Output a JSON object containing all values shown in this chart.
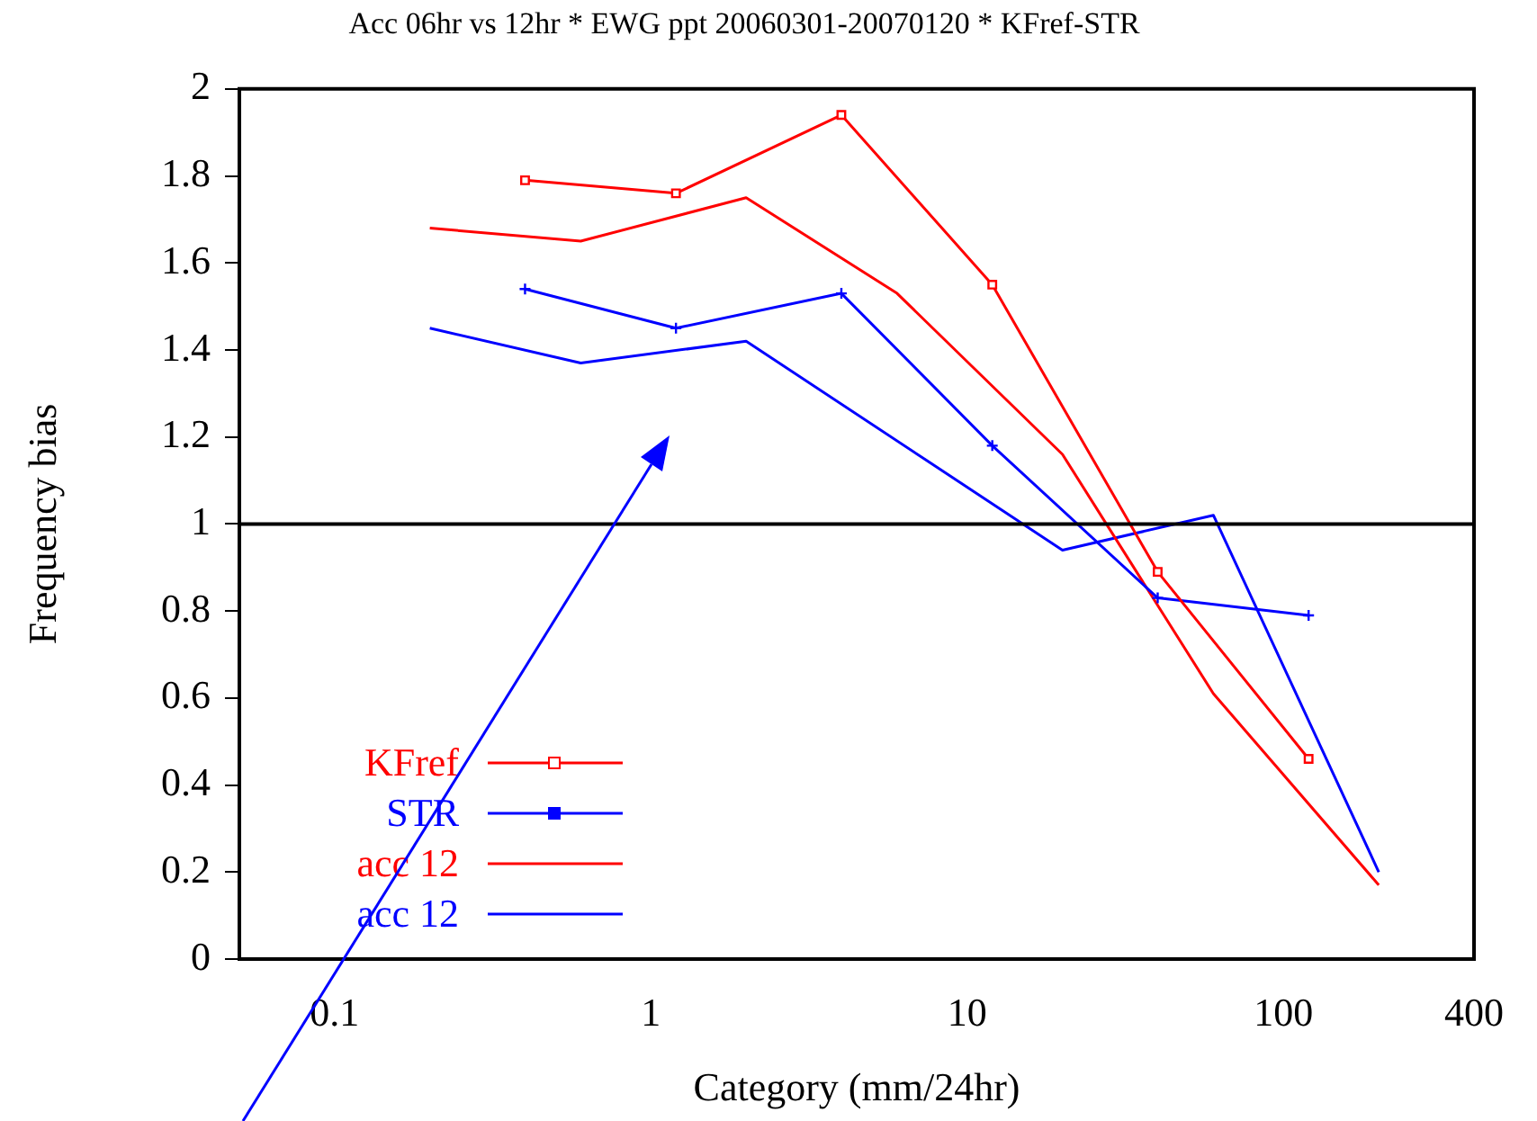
{
  "chart_data": {
    "type": "line",
    "title": "Acc 06hr vs 12hr * EWG ppt 20060301-20070120 * KFref-STR",
    "xlabel": "Category (mm/24hr)",
    "ylabel": "Frequency bias",
    "log": "x",
    "xlim": [
      0.05,
      400
    ],
    "xticks": [
      0.1,
      1,
      10,
      100,
      400
    ],
    "ylim": [
      0,
      2
    ],
    "yticks": [
      0,
      0.2,
      0.4,
      0.6,
      0.8,
      1,
      1.2,
      1.4,
      1.6,
      1.8,
      2
    ],
    "grid": false,
    "legend": "bottom left",
    "line_style": "solid",
    "ref_lines": [
      {
        "axis": "y",
        "value": 1,
        "color": "#000000"
      }
    ],
    "series": [
      {
        "name": "KFref",
        "color": "#ff0000",
        "marker": "square",
        "x": [
          0.4,
          1.2,
          4,
          12,
          40,
          120
        ],
        "values": [
          1.79,
          1.76,
          1.94,
          1.55,
          0.89,
          0.46
        ]
      },
      {
        "name": "STR",
        "color": "#0000ff",
        "marker": "cross",
        "x": [
          0.4,
          1.2,
          4,
          12,
          40,
          120
        ],
        "values": [
          1.54,
          1.45,
          1.53,
          1.18,
          0.83,
          0.79
        ]
      },
      {
        "name": "acc 12",
        "color": "#ff0000",
        "marker": "none",
        "x": [
          0.2,
          0.6,
          2,
          6,
          20,
          60,
          200
        ],
        "values": [
          1.68,
          1.65,
          1.75,
          1.53,
          1.16,
          0.61,
          0.17
        ]
      },
      {
        "name": "acc 12",
        "color": "#0000ff",
        "marker": "none",
        "x": [
          0.2,
          0.6,
          2,
          20,
          60,
          200
        ],
        "values": [
          1.45,
          1.37,
          1.42,
          0.94,
          1.02,
          0.2
        ]
      }
    ]
  }
}
